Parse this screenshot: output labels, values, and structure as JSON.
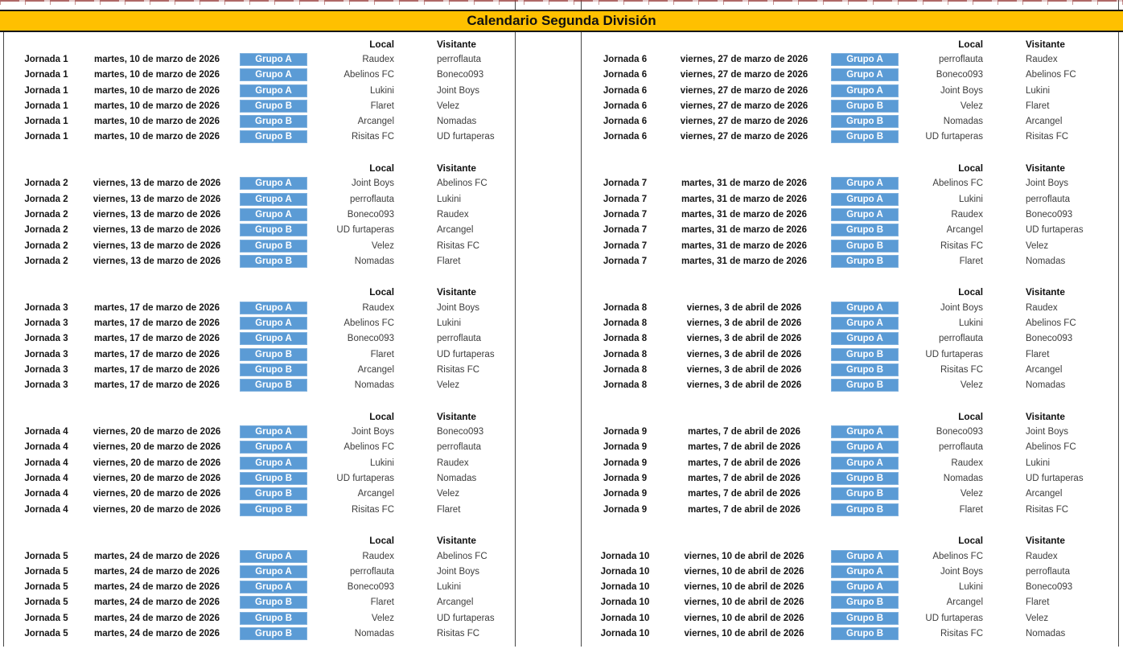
{
  "title": "Calendario Segunda División",
  "columns": {
    "local": "Local",
    "visitante": "Visitante"
  },
  "colors": {
    "title_bg": "#FFC000",
    "badge_blue": "#5B9BD5",
    "grid_line": "#474747",
    "page_break_red": "#943634",
    "bold_text": "#161616",
    "team_text": "#3d3d3d"
  },
  "left_blocks": [
    {
      "jornada": "Jornada 1",
      "date": "martes, 10 de marzo de 2026",
      "matches": [
        {
          "group": "Grupo A",
          "local": "Raudex",
          "visitante": "perroflauta"
        },
        {
          "group": "Grupo A",
          "local": "Abelinos FC",
          "visitante": "Boneco093"
        },
        {
          "group": "Grupo A",
          "local": "Lukini",
          "visitante": "Joint Boys"
        },
        {
          "group": "Grupo B",
          "local": "Flaret",
          "visitante": "Velez"
        },
        {
          "group": "Grupo B",
          "local": "Arcangel",
          "visitante": "Nomadas"
        },
        {
          "group": "Grupo B",
          "local": "Risitas FC",
          "visitante": "UD furtaperas"
        }
      ]
    },
    {
      "jornada": "Jornada 2",
      "date": "viernes, 13 de marzo de 2026",
      "matches": [
        {
          "group": "Grupo A",
          "local": "Joint Boys",
          "visitante": "Abelinos FC"
        },
        {
          "group": "Grupo A",
          "local": "perroflauta",
          "visitante": "Lukini"
        },
        {
          "group": "Grupo A",
          "local": "Boneco093",
          "visitante": "Raudex"
        },
        {
          "group": "Grupo B",
          "local": "UD furtaperas",
          "visitante": "Arcangel"
        },
        {
          "group": "Grupo B",
          "local": "Velez",
          "visitante": "Risitas FC"
        },
        {
          "group": "Grupo B",
          "local": "Nomadas",
          "visitante": "Flaret"
        }
      ]
    },
    {
      "jornada": "Jornada 3",
      "date": "martes, 17 de marzo de 2026",
      "matches": [
        {
          "group": "Grupo A",
          "local": "Raudex",
          "visitante": "Joint Boys"
        },
        {
          "group": "Grupo A",
          "local": "Abelinos FC",
          "visitante": "Lukini"
        },
        {
          "group": "Grupo A",
          "local": "Boneco093",
          "visitante": "perroflauta"
        },
        {
          "group": "Grupo B",
          "local": "Flaret",
          "visitante": "UD furtaperas"
        },
        {
          "group": "Grupo B",
          "local": "Arcangel",
          "visitante": "Risitas FC"
        },
        {
          "group": "Grupo B",
          "local": "Nomadas",
          "visitante": "Velez"
        }
      ]
    },
    {
      "jornada": "Jornada 4",
      "date": "viernes, 20 de marzo de 2026",
      "matches": [
        {
          "group": "Grupo A",
          "local": "Joint Boys",
          "visitante": "Boneco093"
        },
        {
          "group": "Grupo A",
          "local": "Abelinos FC",
          "visitante": "perroflauta"
        },
        {
          "group": "Grupo A",
          "local": "Lukini",
          "visitante": "Raudex"
        },
        {
          "group": "Grupo B",
          "local": "UD furtaperas",
          "visitante": "Nomadas"
        },
        {
          "group": "Grupo B",
          "local": "Arcangel",
          "visitante": "Velez"
        },
        {
          "group": "Grupo B",
          "local": "Risitas FC",
          "visitante": "Flaret"
        }
      ]
    },
    {
      "jornada": "Jornada 5",
      "date": "martes, 24 de marzo de 2026",
      "matches": [
        {
          "group": "Grupo A",
          "local": "Raudex",
          "visitante": "Abelinos FC"
        },
        {
          "group": "Grupo A",
          "local": "perroflauta",
          "visitante": "Joint Boys"
        },
        {
          "group": "Grupo A",
          "local": "Boneco093",
          "visitante": "Lukini"
        },
        {
          "group": "Grupo B",
          "local": "Flaret",
          "visitante": "Arcangel"
        },
        {
          "group": "Grupo B",
          "local": "Velez",
          "visitante": "UD furtaperas"
        },
        {
          "group": "Grupo B",
          "local": "Nomadas",
          "visitante": "Risitas FC"
        }
      ]
    }
  ],
  "right_blocks": [
    {
      "jornada": "Jornada 6",
      "date": "viernes, 27 de marzo de 2026",
      "matches": [
        {
          "group": "Grupo A",
          "local": "perroflauta",
          "visitante": "Raudex"
        },
        {
          "group": "Grupo A",
          "local": "Boneco093",
          "visitante": "Abelinos FC"
        },
        {
          "group": "Grupo A",
          "local": "Joint Boys",
          "visitante": "Lukini"
        },
        {
          "group": "Grupo B",
          "local": "Velez",
          "visitante": "Flaret"
        },
        {
          "group": "Grupo B",
          "local": "Nomadas",
          "visitante": "Arcangel"
        },
        {
          "group": "Grupo B",
          "local": "UD furtaperas",
          "visitante": "Risitas FC"
        }
      ]
    },
    {
      "jornada": "Jornada 7",
      "date": "martes, 31 de marzo de 2026",
      "matches": [
        {
          "group": "Grupo A",
          "local": "Abelinos FC",
          "visitante": "Joint Boys"
        },
        {
          "group": "Grupo A",
          "local": "Lukini",
          "visitante": "perroflauta"
        },
        {
          "group": "Grupo A",
          "local": "Raudex",
          "visitante": "Boneco093"
        },
        {
          "group": "Grupo B",
          "local": "Arcangel",
          "visitante": "UD furtaperas"
        },
        {
          "group": "Grupo B",
          "local": "Risitas FC",
          "visitante": "Velez"
        },
        {
          "group": "Grupo B",
          "local": "Flaret",
          "visitante": "Nomadas"
        }
      ]
    },
    {
      "jornada": "Jornada 8",
      "date": "viernes, 3 de abril de 2026",
      "matches": [
        {
          "group": "Grupo A",
          "local": "Joint Boys",
          "visitante": "Raudex"
        },
        {
          "group": "Grupo A",
          "local": "Lukini",
          "visitante": "Abelinos FC"
        },
        {
          "group": "Grupo A",
          "local": "perroflauta",
          "visitante": "Boneco093"
        },
        {
          "group": "Grupo B",
          "local": "UD furtaperas",
          "visitante": "Flaret"
        },
        {
          "group": "Grupo B",
          "local": "Risitas FC",
          "visitante": "Arcangel"
        },
        {
          "group": "Grupo B",
          "local": "Velez",
          "visitante": "Nomadas"
        }
      ]
    },
    {
      "jornada": "Jornada 9",
      "date": "martes, 7 de abril de 2026",
      "matches": [
        {
          "group": "Grupo A",
          "local": "Boneco093",
          "visitante": "Joint Boys"
        },
        {
          "group": "Grupo A",
          "local": "perroflauta",
          "visitante": "Abelinos FC"
        },
        {
          "group": "Grupo A",
          "local": "Raudex",
          "visitante": "Lukini"
        },
        {
          "group": "Grupo B",
          "local": "Nomadas",
          "visitante": "UD furtaperas"
        },
        {
          "group": "Grupo B",
          "local": "Velez",
          "visitante": "Arcangel"
        },
        {
          "group": "Grupo B",
          "local": "Flaret",
          "visitante": "Risitas FC"
        }
      ]
    },
    {
      "jornada": "Jornada 10",
      "date": "viernes, 10 de abril de 2026",
      "matches": [
        {
          "group": "Grupo A",
          "local": "Abelinos FC",
          "visitante": "Raudex"
        },
        {
          "group": "Grupo A",
          "local": "Joint Boys",
          "visitante": "perroflauta"
        },
        {
          "group": "Grupo A",
          "local": "Lukini",
          "visitante": "Boneco093"
        },
        {
          "group": "Grupo B",
          "local": "Arcangel",
          "visitante": "Flaret"
        },
        {
          "group": "Grupo B",
          "local": "UD furtaperas",
          "visitante": "Velez"
        },
        {
          "group": "Grupo B",
          "local": "Risitas FC",
          "visitante": "Nomadas"
        }
      ]
    }
  ]
}
